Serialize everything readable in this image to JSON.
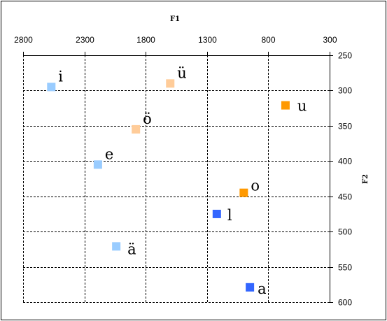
{
  "chart_data": {
    "type": "scatter",
    "title": "",
    "xlabel": "F1",
    "ylabel": "F2",
    "x_axis": {
      "reversed": true,
      "range": [
        2800,
        300
      ],
      "ticks": [
        "2800",
        "2300",
        "1800",
        "1300",
        "800",
        "300"
      ]
    },
    "y_axis": {
      "reversed": true,
      "range": [
        250,
        600
      ],
      "ticks": [
        "250",
        "300",
        "350",
        "400",
        "450",
        "500",
        "550",
        "600"
      ]
    },
    "grid": true,
    "points": [
      {
        "label": "i",
        "x": 2570,
        "y": 295,
        "color": "#99ccff"
      },
      {
        "label": "ü",
        "x": 1600,
        "y": 290,
        "color": "#ffcc99"
      },
      {
        "label": "u",
        "x": 660,
        "y": 321,
        "color": "#ff9900"
      },
      {
        "label": "ö",
        "x": 1880,
        "y": 355,
        "color": "#ffcc99"
      },
      {
        "label": "e",
        "x": 2190,
        "y": 405,
        "color": "#99ccff"
      },
      {
        "label": "o",
        "x": 1000,
        "y": 445,
        "color": "#ff9900"
      },
      {
        "label": "l",
        "x": 1220,
        "y": 475,
        "color": "#3366ff"
      },
      {
        "label": "ä",
        "x": 2040,
        "y": 521,
        "color": "#99ccff"
      },
      {
        "label": "a",
        "x": 950,
        "y": 579,
        "color": "#3366ff"
      }
    ]
  }
}
